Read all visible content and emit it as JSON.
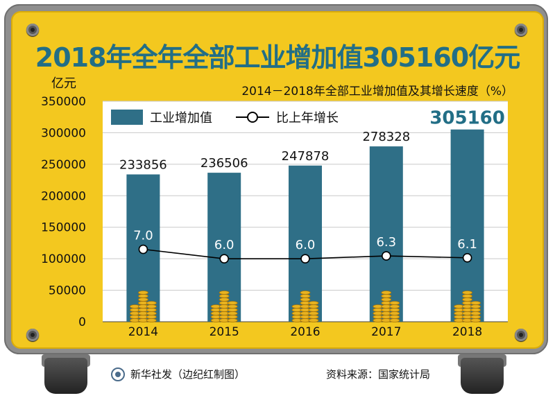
{
  "title": "2018年全年全部工业增加值305160亿元",
  "subtitle": "2014－2018年全部工业增加值及其增长速度（%）",
  "unit_label": "亿元",
  "legend": {
    "bar_label": "工业增加值",
    "line_label": "比上年增长"
  },
  "footer": {
    "source_left": "新华社发（边纪红制图）",
    "source_right": "资料来源：国家统计局"
  },
  "colors": {
    "bar": "#2f6f87",
    "highlight_text": "#226e86",
    "panel": "#f3c81f",
    "frame": "#8e8e8e"
  },
  "chart_data": {
    "type": "bar",
    "categories": [
      "2014",
      "2015",
      "2016",
      "2017",
      "2018"
    ],
    "series": [
      {
        "name": "工业增加值",
        "type": "bar",
        "values": [
          233856,
          236506,
          247878,
          278328,
          305160
        ],
        "labels": [
          "233856",
          "236506",
          "247878",
          "278328",
          "305160"
        ]
      },
      {
        "name": "比上年增长",
        "type": "line",
        "values": [
          7.0,
          6.0,
          6.0,
          6.3,
          6.1
        ],
        "labels": [
          "7.0",
          "6.0",
          "6.0",
          "6.3",
          "6.1"
        ]
      }
    ],
    "yticks": [
      "0",
      "50000",
      "100000",
      "150000",
      "200000",
      "250000",
      "300000",
      "350000"
    ],
    "ylim": [
      0,
      350000
    ],
    "ylabel": "亿元",
    "title": "2014－2018年全部工业增加值及其增长速度（%）"
  }
}
